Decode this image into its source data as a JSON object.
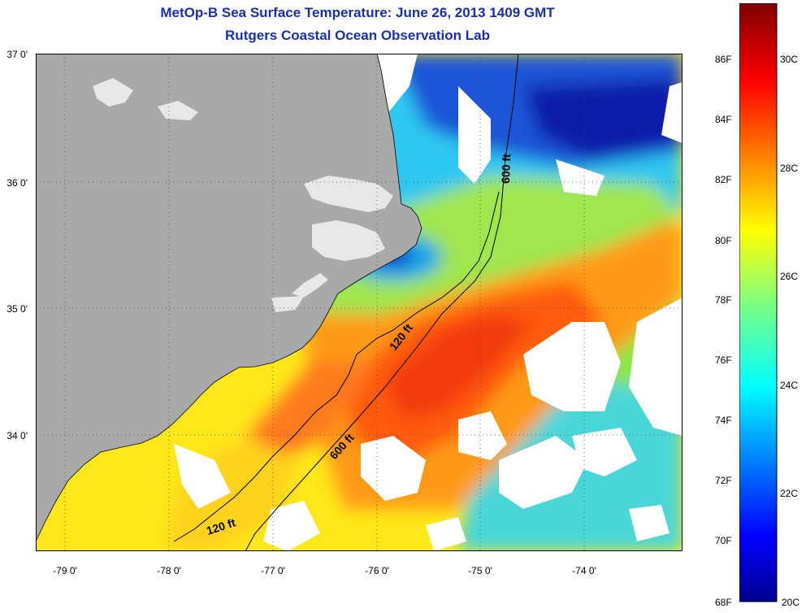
{
  "title": "MetOp-B Sea Surface Temperature:  June 26, 2013 1409 GMT",
  "subtitle": "Rutgers Coastal Ocean Observation Lab",
  "lat_labels": [
    "37 0'",
    "36 0'",
    "35 0'",
    "34 0'"
  ],
  "lon_labels": [
    "-79 0'",
    "-78 0'",
    "-77 0'",
    "-76 0'",
    "-75 0'",
    "-74 0'"
  ],
  "colorbar_f_labels": [
    "86F",
    "84F",
    "82F",
    "80F",
    "78F",
    "76F",
    "74F",
    "72F",
    "70F",
    "68F"
  ],
  "colorbar_c_labels": [
    "30C",
    "28C",
    "26C",
    "24C",
    "22C",
    "20C"
  ],
  "contour_labels": [
    "600 ft",
    "120 ft",
    "600 ft",
    "120 ft"
  ],
  "colors": {
    "land": "#a9a9a9",
    "cloud": "#ffffff",
    "title": "#1a2fb0"
  }
}
